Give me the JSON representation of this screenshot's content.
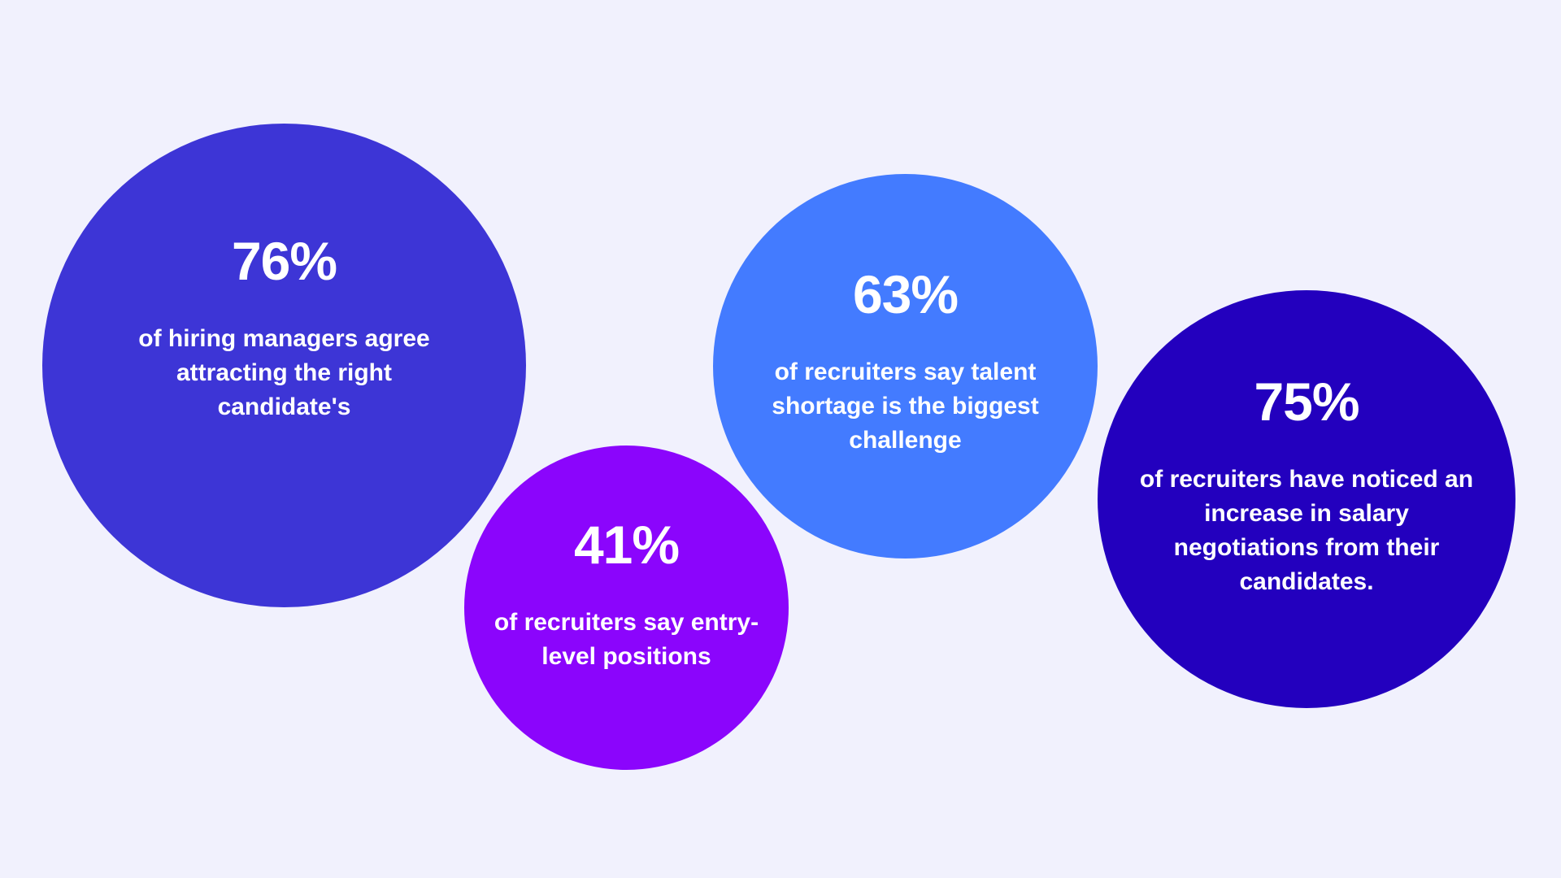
{
  "background_color": "#F1F1FD",
  "stats": [
    {
      "value": "76%",
      "description": "of hiring managers agree attracting the right candidate's",
      "color": "#3D35D6"
    },
    {
      "value": "41%",
      "description": "of recruiters say entry-level positions",
      "color": "#8B05FC"
    },
    {
      "value": "63%",
      "description": "of recruiters say talent shortage is the biggest challenge",
      "color": "#437BFF"
    },
    {
      "value": "75%",
      "description": "of recruiters have noticed an increase in salary negotiations from their candidates.",
      "color": "#2300BE"
    }
  ]
}
